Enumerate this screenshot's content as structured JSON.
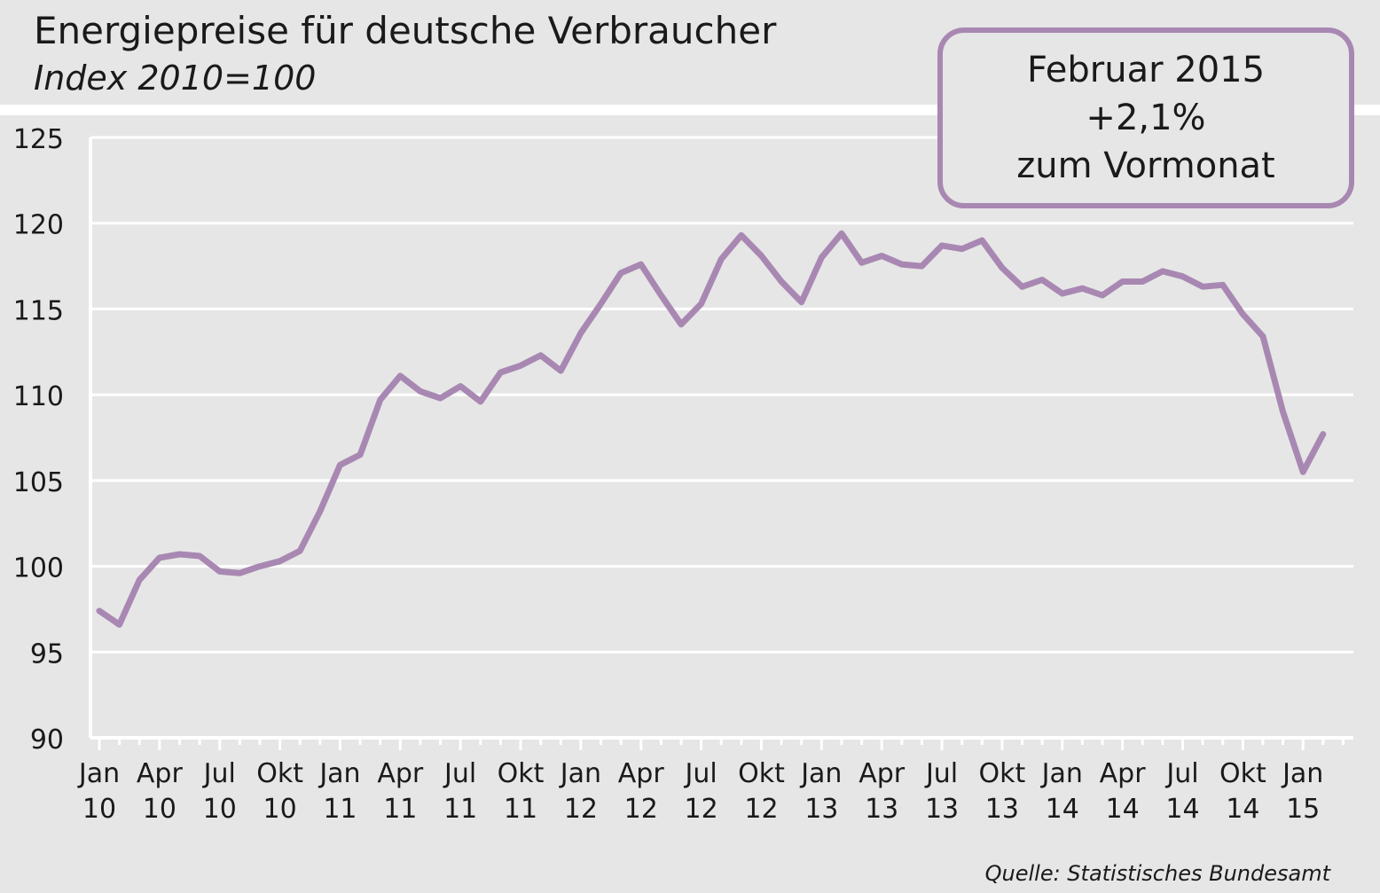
{
  "chart_data": {
    "type": "line",
    "title": "Energiepreise für deutsche Verbraucher",
    "subtitle": "Index 2010=100",
    "xlabel": "",
    "ylabel": "",
    "ylim": [
      90,
      125
    ],
    "y_ticks": [
      90,
      95,
      100,
      105,
      110,
      115,
      120,
      125
    ],
    "grid": true,
    "x_tick_labels": [
      {
        "month": "Jan",
        "year": "10"
      },
      {
        "month": "Apr",
        "year": "10"
      },
      {
        "month": "Jul",
        "year": "10"
      },
      {
        "month": "Okt",
        "year": "10"
      },
      {
        "month": "Jan",
        "year": "11"
      },
      {
        "month": "Apr",
        "year": "11"
      },
      {
        "month": "Jul",
        "year": "11"
      },
      {
        "month": "Okt",
        "year": "11"
      },
      {
        "month": "Jan",
        "year": "12"
      },
      {
        "month": "Apr",
        "year": "12"
      },
      {
        "month": "Jul",
        "year": "12"
      },
      {
        "month": "Okt",
        "year": "12"
      },
      {
        "month": "Jan",
        "year": "13"
      },
      {
        "month": "Apr",
        "year": "13"
      },
      {
        "month": "Jul",
        "year": "13"
      },
      {
        "month": "Okt",
        "year": "13"
      },
      {
        "month": "Jan",
        "year": "14"
      },
      {
        "month": "Apr",
        "year": "14"
      },
      {
        "month": "Jul",
        "year": "14"
      },
      {
        "month": "Okt",
        "year": "14"
      },
      {
        "month": "Jan",
        "year": "15"
      }
    ],
    "x": [
      "2010-01",
      "2010-02",
      "2010-03",
      "2010-04",
      "2010-05",
      "2010-06",
      "2010-07",
      "2010-08",
      "2010-09",
      "2010-10",
      "2010-11",
      "2010-12",
      "2011-01",
      "2011-02",
      "2011-03",
      "2011-04",
      "2011-05",
      "2011-06",
      "2011-07",
      "2011-08",
      "2011-09",
      "2011-10",
      "2011-11",
      "2011-12",
      "2012-01",
      "2012-02",
      "2012-03",
      "2012-04",
      "2012-05",
      "2012-06",
      "2012-07",
      "2012-08",
      "2012-09",
      "2012-10",
      "2012-11",
      "2012-12",
      "2013-01",
      "2013-02",
      "2013-03",
      "2013-04",
      "2013-05",
      "2013-06",
      "2013-07",
      "2013-08",
      "2013-09",
      "2013-10",
      "2013-11",
      "2013-12",
      "2014-01",
      "2014-02",
      "2014-03",
      "2014-04",
      "2014-05",
      "2014-06",
      "2014-07",
      "2014-08",
      "2014-09",
      "2014-10",
      "2014-11",
      "2014-12",
      "2015-01",
      "2015-02"
    ],
    "series": [
      {
        "color": "#a888b2",
        "values": [
          97.4,
          96.6,
          99.2,
          100.5,
          100.7,
          100.6,
          99.7,
          99.6,
          100.0,
          100.3,
          100.9,
          103.2,
          105.9,
          106.5,
          109.7,
          111.1,
          110.2,
          109.8,
          110.5,
          109.6,
          111.3,
          111.7,
          112.3,
          111.4,
          113.6,
          115.3,
          117.1,
          117.6,
          115.8,
          114.1,
          115.3,
          117.9,
          119.3,
          118.1,
          116.6,
          115.4,
          118.0,
          119.4,
          117.7,
          118.1,
          117.6,
          117.5,
          118.7,
          118.5,
          119.0,
          117.4,
          116.3,
          116.7,
          115.9,
          116.2,
          115.8,
          116.6,
          116.6,
          117.2,
          116.9,
          116.3,
          116.4,
          114.7,
          113.4,
          109.0,
          105.5,
          107.7
        ]
      }
    ]
  },
  "callout": {
    "line1": "Februar 2015",
    "line2": "+2,1%",
    "line3": "zum Vormonat",
    "border_color": "#a888b2"
  },
  "source": "Quelle: Statistisches Bundesamt"
}
